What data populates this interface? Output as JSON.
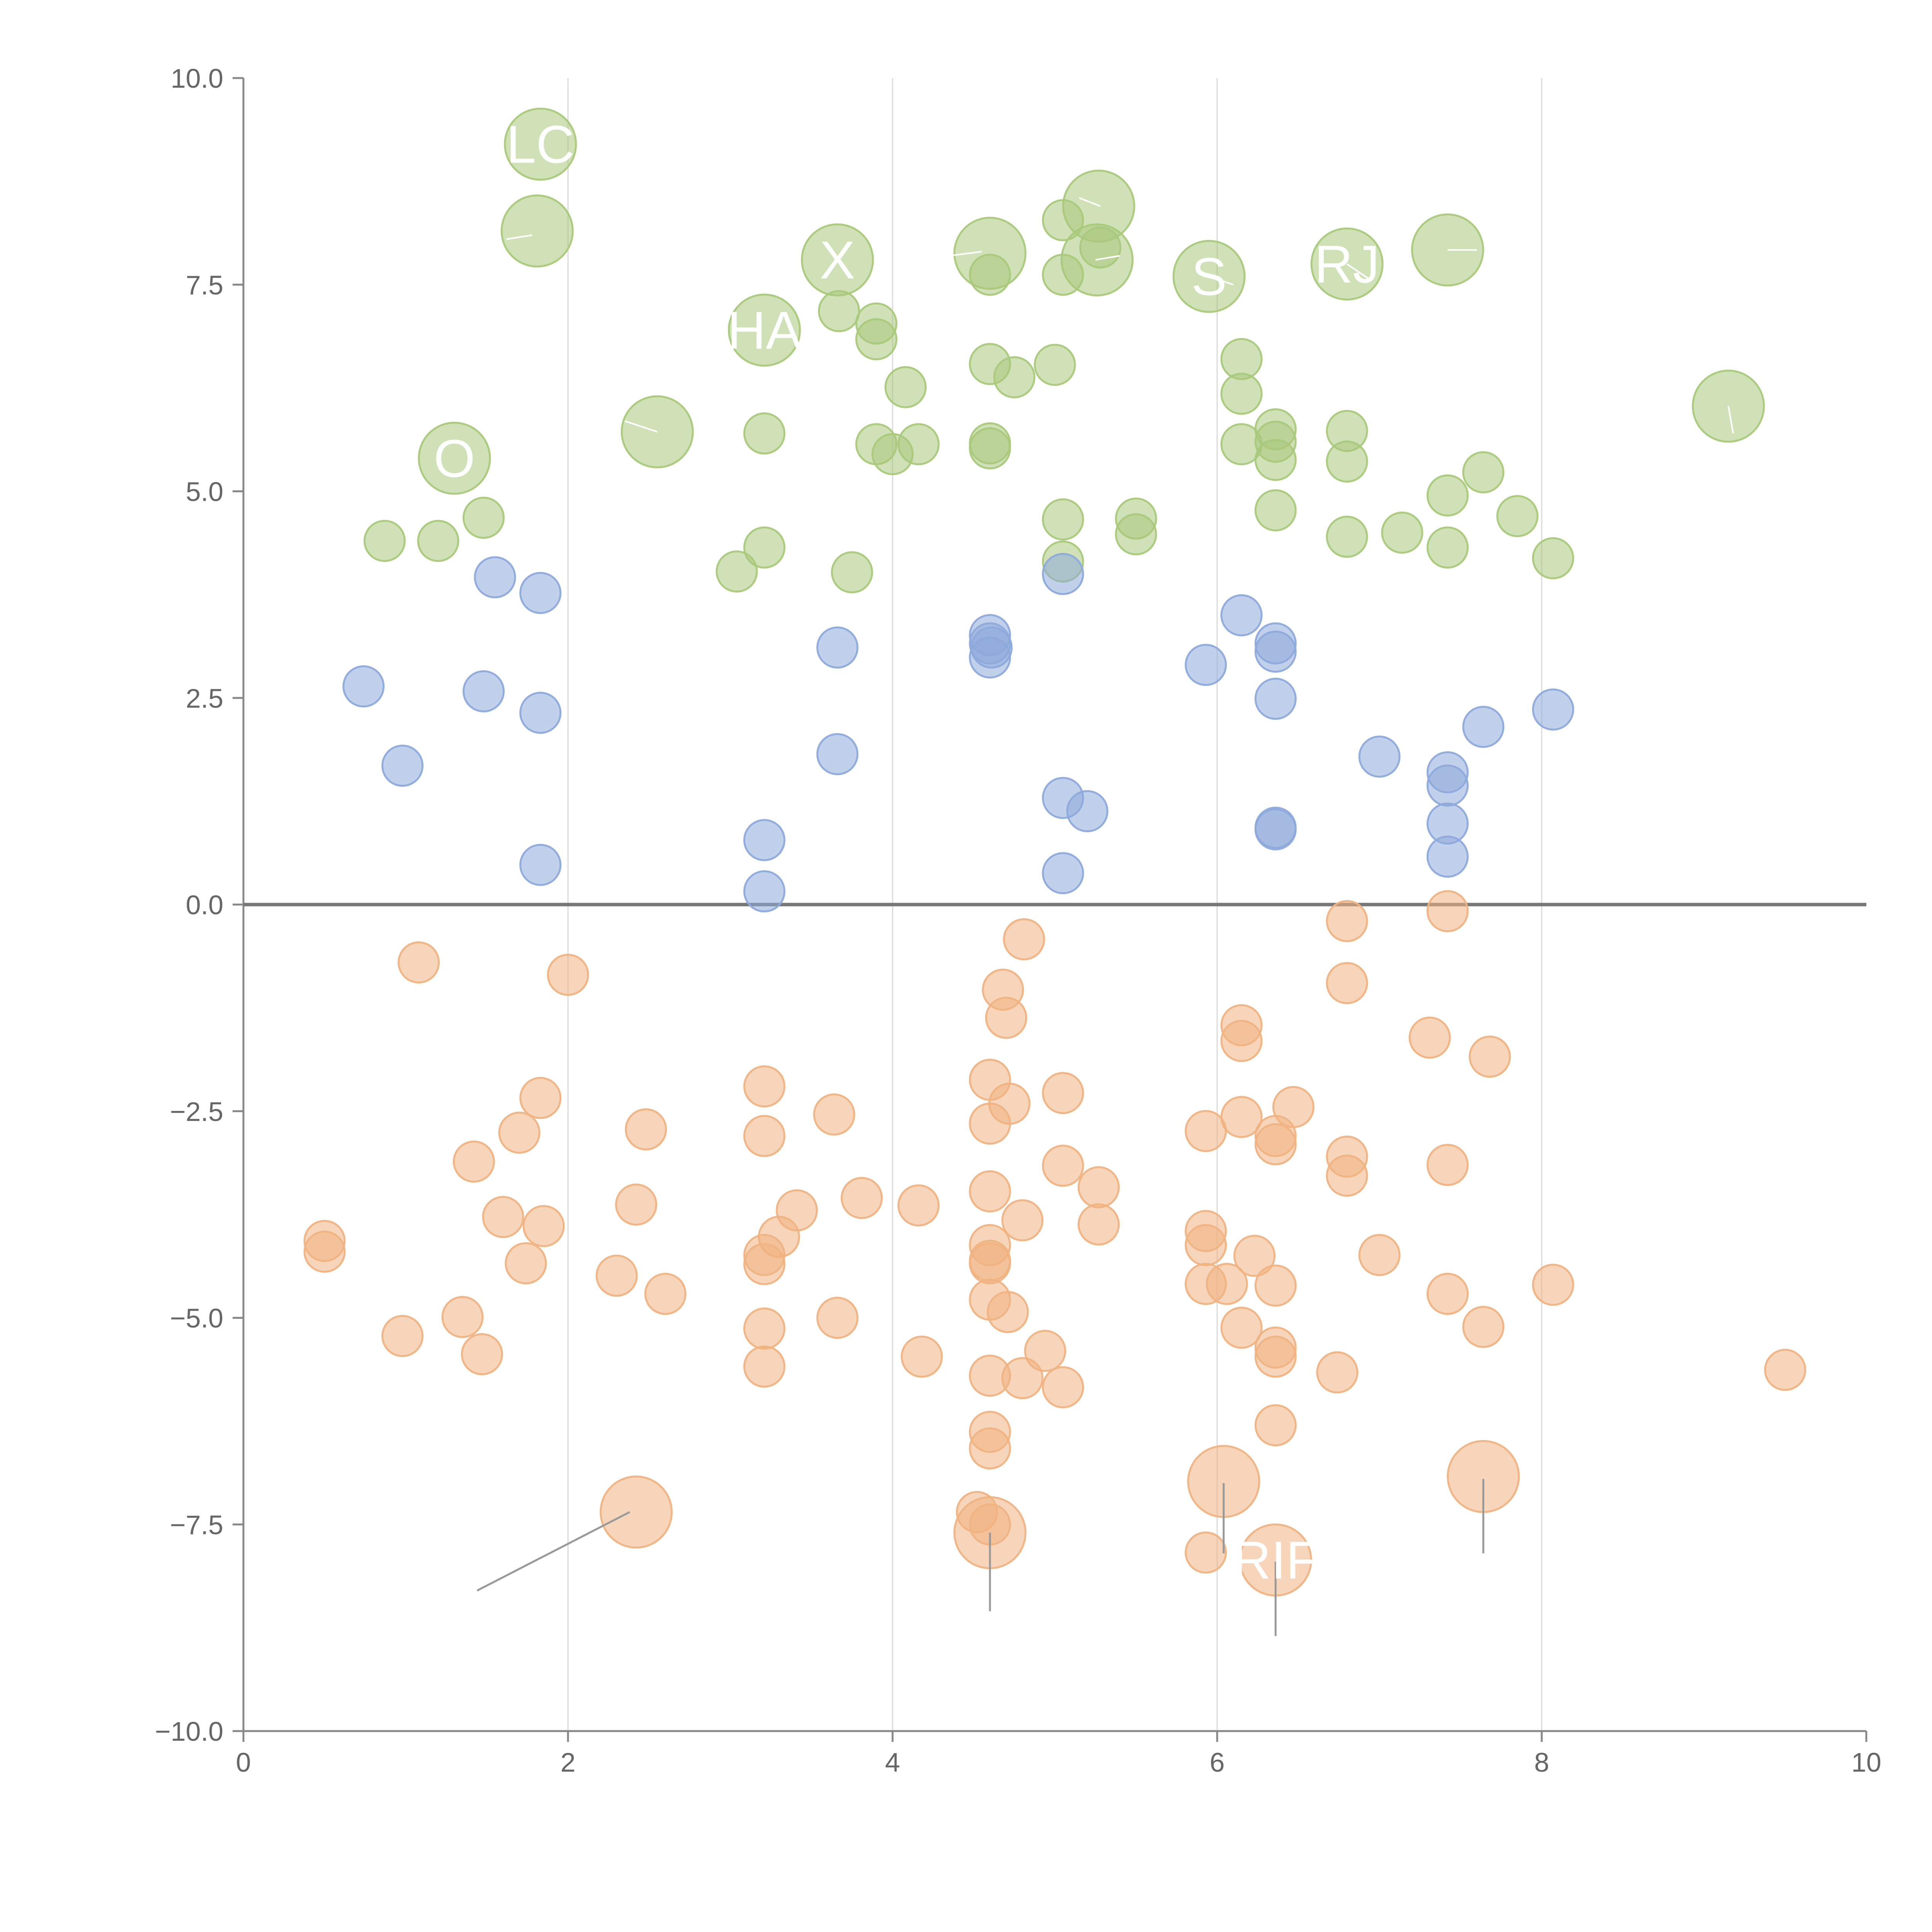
{
  "chart_data": {
    "type": "scatter",
    "title": "",
    "xlabel": "",
    "ylabel": "",
    "xlim": [
      0,
      10
    ],
    "ylim": [
      -10,
      10
    ],
    "grid": "vertical",
    "x_ticks": [
      0,
      2,
      4,
      6,
      8,
      10
    ],
    "x_tick_labels": [
      "0",
      "2",
      "4",
      "6",
      "8",
      "10"
    ],
    "y_ticks": [
      10,
      7.5,
      5,
      2.5,
      0,
      -2.5,
      -5,
      -7.5,
      -10
    ],
    "y_tick_labels": [
      "10.0",
      "7.5",
      "5.0",
      "2.5",
      "0.0",
      "−2.5",
      "−5.0",
      "−7.5",
      "−10.0"
    ],
    "reference_line": {
      "y": 0
    },
    "size_scale": {
      "small": 1,
      "large": 2
    },
    "series": [
      {
        "name": "green",
        "color": "#a9c97b",
        "points": [
          [
            1.83,
            9.2,
            2
          ],
          [
            1.81,
            8.15,
            2
          ],
          [
            3.66,
            7.8,
            2
          ],
          [
            3.21,
            6.95,
            2
          ],
          [
            4.6,
            7.88,
            2
          ],
          [
            5.27,
            8.45,
            2
          ],
          [
            5.26,
            7.8,
            2
          ],
          [
            5.95,
            7.6,
            2
          ],
          [
            6.8,
            7.75,
            2
          ],
          [
            7.42,
            7.92,
            2
          ],
          [
            2.55,
            5.72,
            2
          ],
          [
            1.3,
            5.4,
            2
          ],
          [
            9.15,
            6.03,
            2
          ],
          [
            5.05,
            8.28,
            1
          ],
          [
            5.05,
            7.62,
            1
          ],
          [
            5.28,
            7.95,
            1
          ],
          [
            4.6,
            7.62,
            1
          ],
          [
            3.67,
            7.18,
            1
          ],
          [
            3.9,
            7.03,
            1
          ],
          [
            3.9,
            6.84,
            1
          ],
          [
            4.08,
            6.26,
            1
          ],
          [
            4.6,
            6.54,
            1
          ],
          [
            4.75,
            6.38,
            1
          ],
          [
            5.0,
            6.53,
            1
          ],
          [
            6.15,
            6.6,
            1
          ],
          [
            6.15,
            6.18,
            1
          ],
          [
            6.15,
            5.57,
            1
          ],
          [
            6.36,
            5.75,
            1
          ],
          [
            6.36,
            5.6,
            1
          ],
          [
            6.36,
            5.38,
            1
          ],
          [
            6.8,
            5.73,
            1
          ],
          [
            6.8,
            5.36,
            1
          ],
          [
            3.21,
            5.7,
            1
          ],
          [
            3.9,
            5.57,
            1
          ],
          [
            4.0,
            5.45,
            1
          ],
          [
            4.16,
            5.57,
            1
          ],
          [
            4.6,
            5.58,
            1
          ],
          [
            4.6,
            5.52,
            1
          ],
          [
            1.48,
            4.68,
            1
          ],
          [
            0.87,
            4.4,
            1
          ],
          [
            1.2,
            4.4,
            1
          ],
          [
            3.21,
            4.32,
            1
          ],
          [
            3.04,
            4.03,
            1
          ],
          [
            3.75,
            4.02,
            1
          ],
          [
            5.05,
            4.66,
            1
          ],
          [
            5.05,
            4.15,
            1
          ],
          [
            5.5,
            4.67,
            1
          ],
          [
            5.5,
            4.48,
            1
          ],
          [
            6.36,
            4.77,
            1
          ],
          [
            6.8,
            4.45,
            1
          ],
          [
            7.14,
            4.5,
            1
          ],
          [
            7.42,
            4.95,
            1
          ],
          [
            7.42,
            4.32,
            1
          ],
          [
            7.64,
            5.23,
            1
          ],
          [
            7.85,
            4.7,
            1
          ],
          [
            8.07,
            4.19,
            1
          ]
        ]
      },
      {
        "name": "blue",
        "color": "#8eaadb",
        "points": [
          [
            1.55,
            3.96,
            1
          ],
          [
            1.83,
            3.77,
            1
          ],
          [
            0.74,
            2.64,
            1
          ],
          [
            1.48,
            2.58,
            1
          ],
          [
            1.83,
            2.32,
            1
          ],
          [
            0.98,
            1.68,
            1
          ],
          [
            1.83,
            0.48,
            1
          ],
          [
            3.21,
            0.78,
            1
          ],
          [
            3.21,
            0.16,
            1
          ],
          [
            3.66,
            3.11,
            1
          ],
          [
            3.66,
            1.82,
            1
          ],
          [
            4.6,
            3.26,
            1
          ],
          [
            4.6,
            3.16,
            1
          ],
          [
            4.61,
            3.11,
            1
          ],
          [
            4.6,
            2.99,
            1
          ],
          [
            5.05,
            4.0,
            1
          ],
          [
            5.05,
            1.29,
            1
          ],
          [
            5.2,
            1.13,
            1
          ],
          [
            5.05,
            0.38,
            1
          ],
          [
            5.93,
            2.9,
            1
          ],
          [
            6.15,
            3.5,
            1
          ],
          [
            6.36,
            3.16,
            1
          ],
          [
            6.36,
            3.06,
            1
          ],
          [
            6.36,
            2.49,
            1
          ],
          [
            6.36,
            0.93,
            1
          ],
          [
            6.36,
            0.91,
            1
          ],
          [
            7.0,
            1.79,
            1
          ],
          [
            7.42,
            1.6,
            1
          ],
          [
            7.42,
            1.44,
            1
          ],
          [
            7.42,
            0.98,
            1
          ],
          [
            7.42,
            0.58,
            1
          ],
          [
            7.64,
            2.15,
            1
          ],
          [
            8.07,
            2.36,
            1
          ]
        ]
      },
      {
        "name": "orange",
        "color": "#f0b382",
        "points": [
          [
            1.08,
            -0.7,
            1
          ],
          [
            2.0,
            -0.85,
            1
          ],
          [
            1.83,
            -2.34,
            1
          ],
          [
            1.7,
            -2.76,
            1
          ],
          [
            1.42,
            -3.11,
            1
          ],
          [
            1.6,
            -3.78,
            1
          ],
          [
            1.85,
            -3.89,
            1
          ],
          [
            1.74,
            -4.34,
            1
          ],
          [
            1.35,
            -4.99,
            1
          ],
          [
            0.98,
            -5.22,
            1
          ],
          [
            1.47,
            -5.44,
            1
          ],
          [
            0.5,
            -4.07,
            1
          ],
          [
            0.5,
            -4.2,
            1
          ],
          [
            2.3,
            -4.49,
            1
          ],
          [
            2.6,
            -4.71,
            1
          ],
          [
            2.42,
            -3.63,
            1
          ],
          [
            2.48,
            -2.72,
            1
          ],
          [
            3.21,
            -2.2,
            1
          ],
          [
            3.21,
            -2.8,
            1
          ],
          [
            3.41,
            -3.7,
            1
          ],
          [
            3.3,
            -4.02,
            1
          ],
          [
            3.21,
            -4.24,
            1
          ],
          [
            3.21,
            -4.35,
            1
          ],
          [
            3.21,
            -5.13,
            1
          ],
          [
            3.21,
            -5.59,
            1
          ],
          [
            3.64,
            -2.54,
            1
          ],
          [
            3.66,
            -5.0,
            1
          ],
          [
            3.81,
            -3.55,
            1
          ],
          [
            4.16,
            -3.64,
            1
          ],
          [
            4.18,
            -5.47,
            1
          ],
          [
            4.6,
            -2.12,
            1
          ],
          [
            4.6,
            -2.65,
            1
          ],
          [
            4.6,
            -3.47,
            1
          ],
          [
            4.6,
            -4.12,
            1
          ],
          [
            4.6,
            -4.31,
            1
          ],
          [
            4.6,
            -4.34,
            1
          ],
          [
            4.6,
            -4.78,
            1
          ],
          [
            4.6,
            -5.7,
            1
          ],
          [
            4.6,
            -6.38,
            1
          ],
          [
            4.6,
            -6.58,
            1
          ],
          [
            4.52,
            -7.35,
            1
          ],
          [
            4.6,
            -7.5,
            1
          ],
          [
            4.72,
            -2.41,
            1
          ],
          [
            4.71,
            -4.93,
            1
          ],
          [
            4.68,
            -1.03,
            1
          ],
          [
            4.7,
            -1.37,
            1
          ],
          [
            4.81,
            -0.42,
            1
          ],
          [
            4.8,
            -3.82,
            1
          ],
          [
            4.8,
            -5.73,
            1
          ],
          [
            4.94,
            -5.4,
            1
          ],
          [
            5.05,
            -2.28,
            1
          ],
          [
            5.05,
            -3.16,
            1
          ],
          [
            5.05,
            -5.84,
            1
          ],
          [
            5.27,
            -3.42,
            1
          ],
          [
            5.27,
            -3.87,
            1
          ],
          [
            5.93,
            -2.74,
            1
          ],
          [
            5.93,
            -3.95,
            1
          ],
          [
            5.93,
            -4.12,
            1
          ],
          [
            5.93,
            -4.59,
            1
          ],
          [
            5.93,
            -7.84,
            1
          ],
          [
            6.06,
            -4.59,
            1
          ],
          [
            6.15,
            -1.46,
            1
          ],
          [
            6.15,
            -1.65,
            1
          ],
          [
            6.15,
            -2.57,
            1
          ],
          [
            6.15,
            -5.12,
            1
          ],
          [
            6.23,
            -4.25,
            1
          ],
          [
            6.36,
            -2.8,
            1
          ],
          [
            6.36,
            -2.9,
            1
          ],
          [
            6.36,
            -4.61,
            1
          ],
          [
            6.36,
            -5.36,
            1
          ],
          [
            6.36,
            -5.47,
            1
          ],
          [
            6.36,
            -6.3,
            1
          ],
          [
            6.47,
            -2.45,
            1
          ],
          [
            6.74,
            -5.66,
            1
          ],
          [
            6.8,
            -0.2,
            1
          ],
          [
            6.8,
            -0.95,
            1
          ],
          [
            6.8,
            -3.05,
            1
          ],
          [
            6.8,
            -3.28,
            1
          ],
          [
            7.0,
            -4.24,
            1
          ],
          [
            7.31,
            -1.61,
            1
          ],
          [
            7.42,
            -0.08,
            1
          ],
          [
            7.42,
            -3.15,
            1
          ],
          [
            7.42,
            -4.71,
            1
          ],
          [
            7.64,
            -5.11,
            1
          ],
          [
            7.68,
            -1.84,
            1
          ],
          [
            8.07,
            -4.6,
            1
          ],
          [
            9.5,
            -5.63,
            1
          ],
          [
            2.42,
            -7.35,
            2
          ],
          [
            4.6,
            -7.6,
            2
          ],
          [
            6.04,
            -6.98,
            2
          ],
          [
            6.36,
            -7.93,
            2
          ],
          [
            7.64,
            -6.92,
            2
          ]
        ]
      }
    ],
    "annotations": [
      {
        "text": "LC",
        "x": 1.83,
        "y": 9.2
      },
      {
        "text": "X",
        "x": 3.66,
        "y": 7.8
      },
      {
        "text": "HA",
        "x": 3.21,
        "y": 6.95
      },
      {
        "text": "O",
        "x": 1.3,
        "y": 5.4
      },
      {
        "text": "S",
        "x": 5.95,
        "y": 7.6
      },
      {
        "text": "RJ",
        "x": 6.8,
        "y": 7.75
      },
      {
        "text": "RIF",
        "x": 6.36,
        "y": -7.93
      }
    ],
    "leaders_white": [
      [
        [
          1.78,
          8.1
        ],
        [
          1.62,
          8.05
        ]
      ],
      [
        [
          5.28,
          8.45
        ],
        [
          5.15,
          8.55
        ]
      ],
      [
        [
          4.55,
          7.9
        ],
        [
          4.35,
          7.85
        ]
      ],
      [
        [
          5.25,
          7.8
        ],
        [
          5.4,
          7.85
        ]
      ],
      [
        [
          5.95,
          7.6
        ],
        [
          6.1,
          7.5
        ]
      ],
      [
        [
          6.8,
          7.75
        ],
        [
          6.95,
          7.55
        ]
      ],
      [
        [
          7.42,
          7.92
        ],
        [
          7.6,
          7.92
        ]
      ],
      [
        [
          2.55,
          5.72
        ],
        [
          2.35,
          5.85
        ]
      ],
      [
        [
          9.15,
          6.03
        ],
        [
          9.18,
          5.7
        ]
      ]
    ],
    "leaders_gray": [
      [
        [
          2.38,
          -7.35
        ],
        [
          1.44,
          -8.3
        ]
      ],
      [
        [
          4.6,
          -7.6
        ],
        [
          4.6,
          -8.55
        ]
      ],
      [
        [
          6.04,
          -7.0
        ],
        [
          6.04,
          -7.85
        ]
      ],
      [
        [
          6.36,
          -7.95
        ],
        [
          6.36,
          -8.85
        ]
      ],
      [
        [
          7.64,
          -6.95
        ],
        [
          7.64,
          -7.85
        ]
      ]
    ]
  }
}
